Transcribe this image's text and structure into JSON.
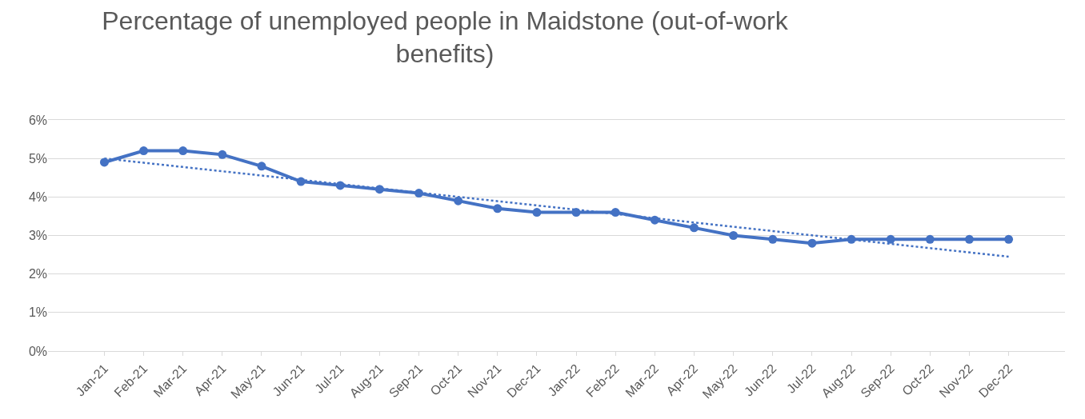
{
  "chart_data": {
    "type": "line",
    "title": "Percentage of unemployed people in Maidstone (out-of-work benefits)",
    "categories": [
      "Jan-21",
      "Feb-21",
      "Mar-21",
      "Apr-21",
      "May-21",
      "Jun-21",
      "Jul-21",
      "Aug-21",
      "Sep-21",
      "Oct-21",
      "Nov-21",
      "Dec-21",
      "Jan-22",
      "Feb-22",
      "Mar-22",
      "Apr-22",
      "May-22",
      "Jun-22",
      "Jul-22",
      "Aug-22",
      "Sep-22",
      "Oct-22",
      "Nov-22",
      "Dec-22"
    ],
    "series": [
      {
        "color": "#4472c4",
        "marker": "circle",
        "line_style": "solid",
        "values": [
          4.9,
          5.2,
          5.2,
          5.1,
          4.8,
          4.4,
          4.3,
          4.2,
          4.1,
          3.9,
          3.7,
          3.6,
          3.6,
          3.6,
          3.4,
          3.2,
          3.0,
          2.9,
          2.8,
          2.9,
          2.9,
          2.9,
          2.9,
          2.9
        ]
      },
      {
        "type": "line",
        "color": "#4472c4",
        "marker": "none",
        "line_style": "dotted",
        "x": [
          "Jan-21",
          "Dec-22"
        ],
        "values": [
          5.0,
          2.45
        ]
      }
    ],
    "ylim": [
      0,
      6
    ],
    "yticks": [
      {
        "value": 0,
        "label": "0%"
      },
      {
        "value": 1,
        "label": "1%"
      },
      {
        "value": 2,
        "label": "2%"
      },
      {
        "value": 3,
        "label": "3%"
      },
      {
        "value": 4,
        "label": "4%"
      },
      {
        "value": 5,
        "label": "5%"
      },
      {
        "value": 6,
        "label": "6%"
      }
    ],
    "grid": "y"
  }
}
